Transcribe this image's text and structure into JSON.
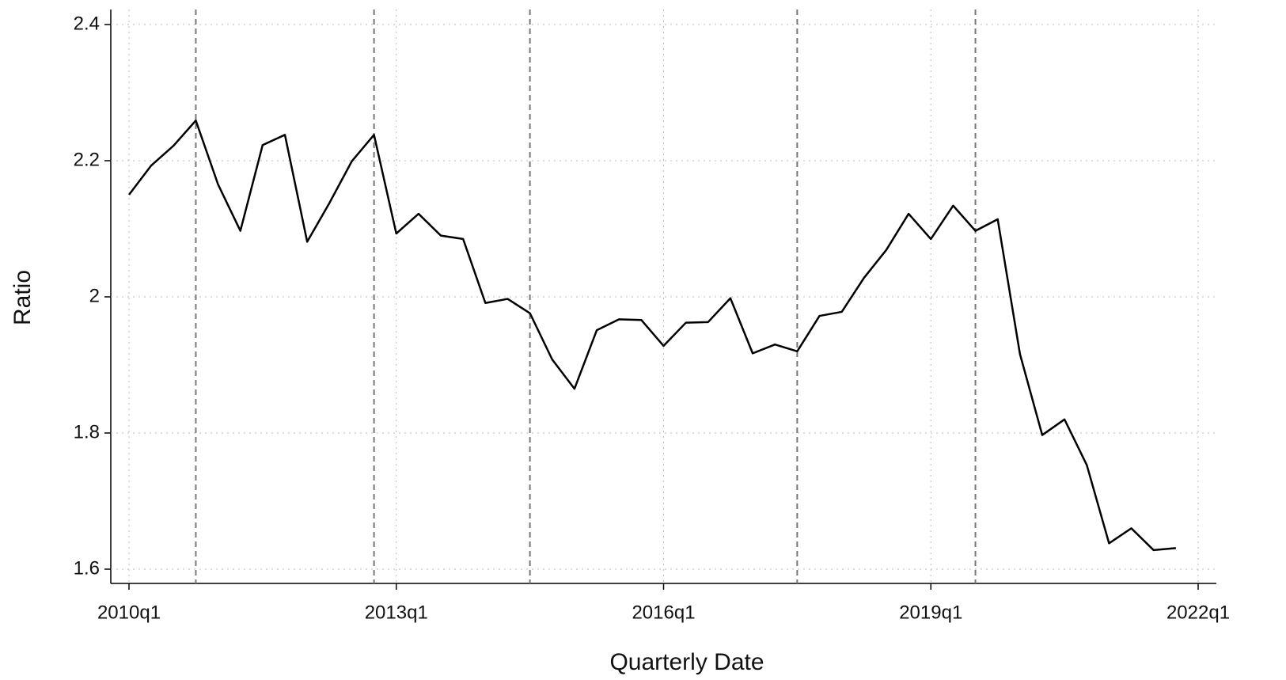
{
  "chart_data": {
    "type": "line",
    "x_label": "Quarterly Date",
    "y_label": "Ratio",
    "x": [
      "2010q1",
      "2010q2",
      "2010q3",
      "2010q4",
      "2011q1",
      "2011q2",
      "2011q3",
      "2011q4",
      "2012q1",
      "2012q2",
      "2012q3",
      "2012q4",
      "2013q1",
      "2013q2",
      "2013q3",
      "2013q4",
      "2014q1",
      "2014q2",
      "2014q3",
      "2014q4",
      "2015q1",
      "2015q2",
      "2015q3",
      "2015q4",
      "2016q1",
      "2016q2",
      "2016q3",
      "2016q4",
      "2017q1",
      "2017q2",
      "2017q3",
      "2017q4",
      "2018q1",
      "2018q2",
      "2018q3",
      "2018q4",
      "2019q1",
      "2019q2",
      "2019q3",
      "2019q4",
      "2020q1",
      "2020q2",
      "2020q3",
      "2020q4",
      "2021q1",
      "2021q2",
      "2021q3",
      "2021q4"
    ],
    "series": [
      {
        "name": "Ratio",
        "color": "#000000",
        "values": [
          2.15,
          2.193,
          2.222,
          2.259,
          2.165,
          2.097,
          2.223,
          2.238,
          2.081,
          2.138,
          2.199,
          2.238,
          2.093,
          2.122,
          2.09,
          2.085,
          1.991,
          1.997,
          1.976,
          1.908,
          1.865,
          1.951,
          1.967,
          1.966,
          1.928,
          1.962,
          1.963,
          1.998,
          1.917,
          1.93,
          1.92,
          1.972,
          1.978,
          2.028,
          2.069,
          2.122,
          2.085,
          2.134,
          2.097,
          2.114,
          1.916,
          1.797,
          1.82,
          1.753,
          1.638,
          1.66,
          1.628,
          1.631
        ]
      }
    ],
    "xlim": [
      "2010q1",
      "2022q1"
    ],
    "xticks": [
      "2010q1",
      "2013q1",
      "2016q1",
      "2019q1",
      "2022q1"
    ],
    "ylim": [
      1.6,
      2.4
    ],
    "yticks": [
      1.6,
      1.8,
      2,
      2.2,
      2.4
    ],
    "vlines": [
      "2010q4",
      "2012q4",
      "2014q3",
      "2017q3",
      "2019q3"
    ],
    "grid": true
  }
}
